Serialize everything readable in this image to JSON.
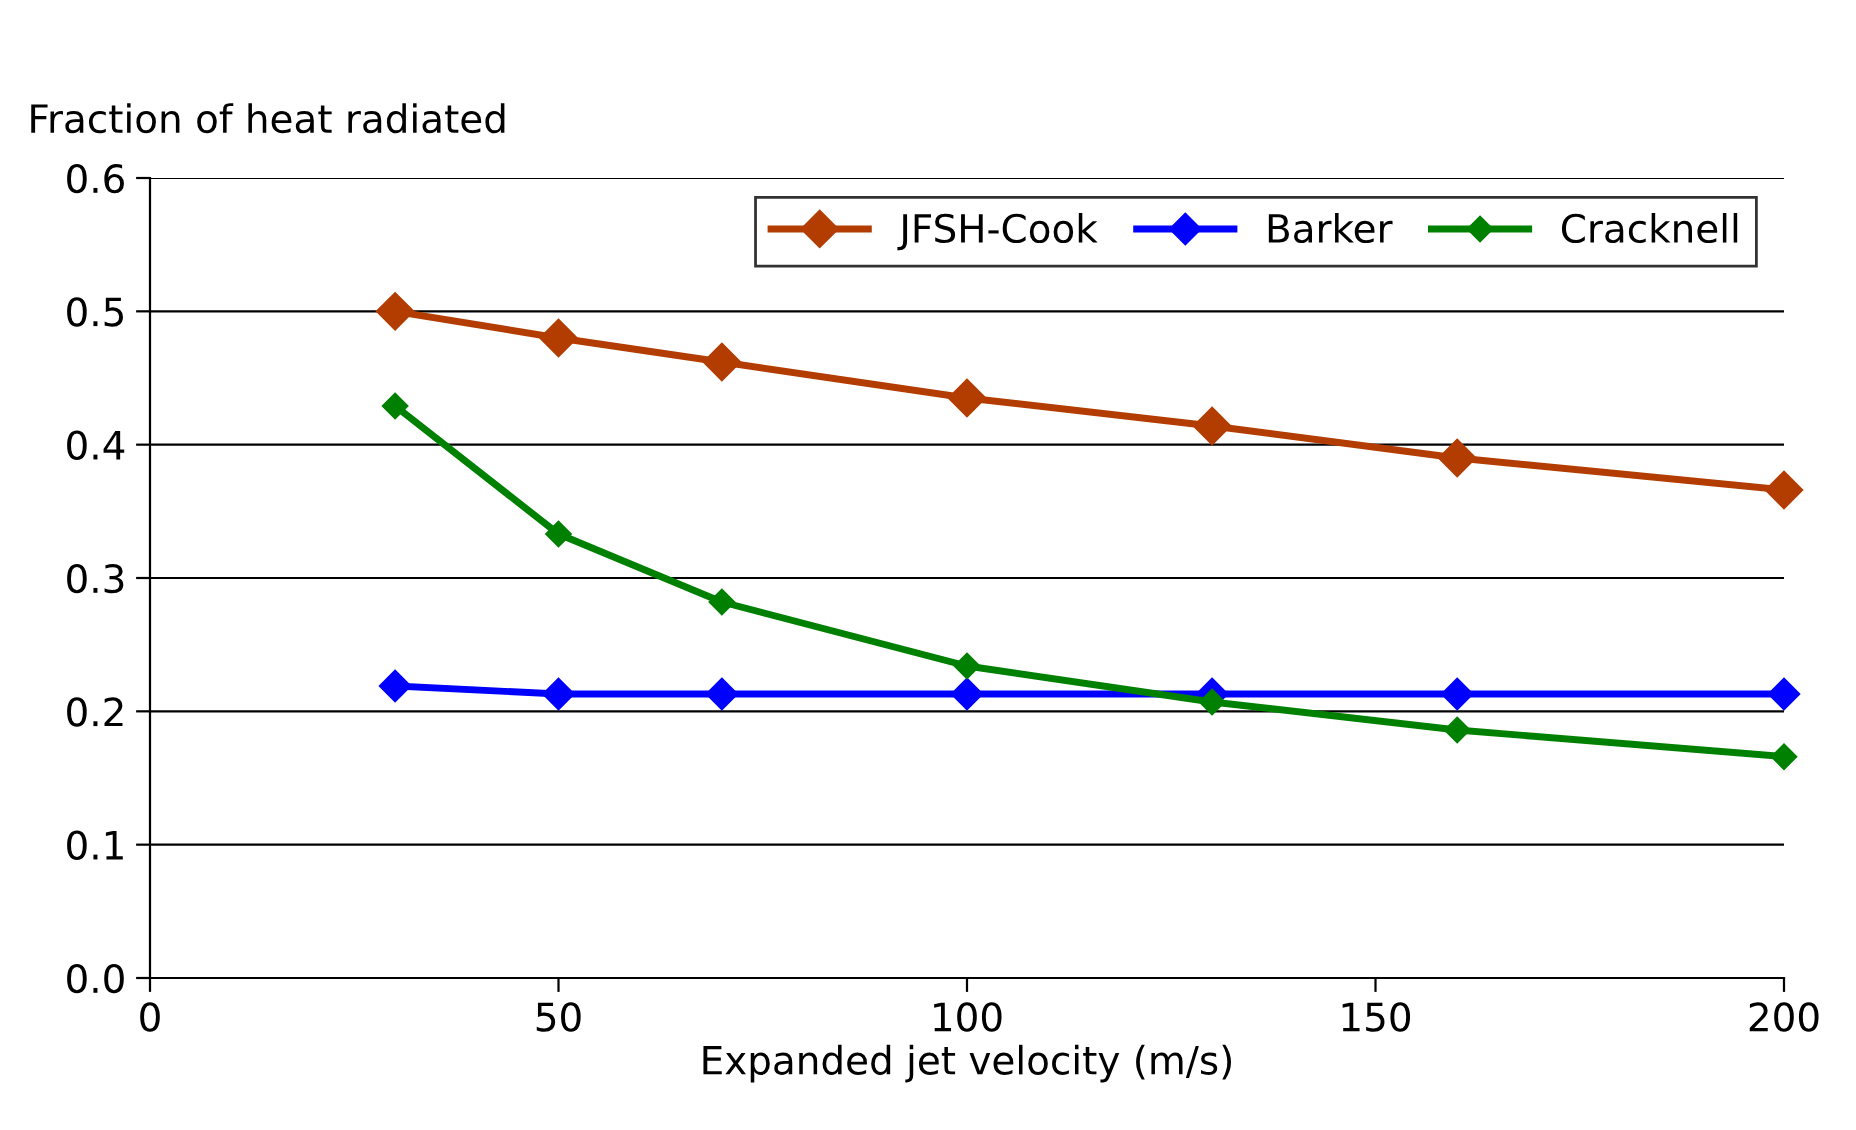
{
  "chart_data": {
    "type": "line",
    "ylabel": "Fraction of heat radiated",
    "xlabel": "Expanded jet velocity (m/s)",
    "x": [
      30,
      50,
      70,
      100,
      130,
      160,
      200
    ],
    "series": [
      {
        "name": "JFSH-Cook",
        "color": "#b33c00",
        "values": [
          0.5,
          0.48,
          0.462,
          0.435,
          0.414,
          0.39,
          0.366
        ]
      },
      {
        "name": "Barker",
        "color": "#0000ff",
        "values": [
          0.219,
          0.213,
          0.213,
          0.213,
          0.213,
          0.213,
          0.213
        ]
      },
      {
        "name": "Cracknell",
        "color": "#008000",
        "values": [
          0.429,
          0.333,
          0.282,
          0.234,
          0.207,
          0.186,
          0.166
        ]
      }
    ],
    "xlim": [
      0,
      200
    ],
    "xticks": [
      0,
      50,
      100,
      150,
      200
    ],
    "ylim": [
      0,
      0.6
    ],
    "yticks": [
      {
        "value": 0,
        "label": "0.0"
      },
      {
        "value": 0.1,
        "label": "0.1"
      },
      {
        "value": 0.2,
        "label": "0.2"
      },
      {
        "value": 0.3,
        "label": "0.3"
      },
      {
        "value": 0.4,
        "label": "0.4"
      },
      {
        "value": 0.5,
        "label": "0.5"
      },
      {
        "value": 0.6,
        "label": "0.6"
      }
    ],
    "grid": "y",
    "legend": "top right",
    "marker": "diamond",
    "line_style": "solid"
  }
}
